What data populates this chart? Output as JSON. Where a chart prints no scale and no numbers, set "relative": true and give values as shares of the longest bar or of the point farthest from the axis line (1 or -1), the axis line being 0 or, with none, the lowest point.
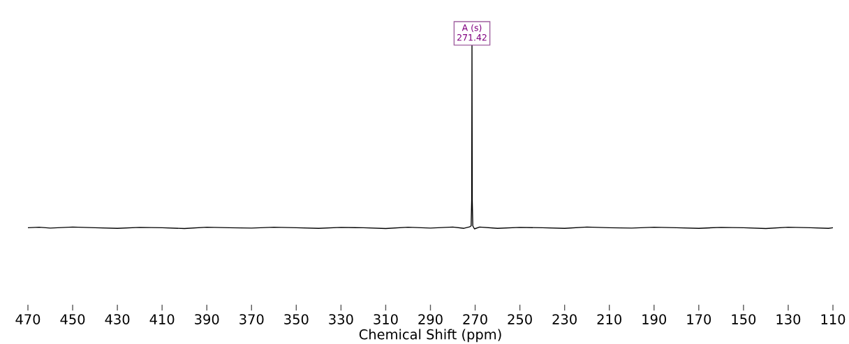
{
  "chart_data": {
    "type": "line",
    "relative": true,
    "xlabel": "Chemical Shift (ppm)",
    "xlim": [
      470,
      110
    ],
    "xticks": [
      470,
      450,
      430,
      410,
      390,
      370,
      350,
      330,
      310,
      290,
      270,
      250,
      230,
      210,
      190,
      170,
      150,
      130,
      110
    ],
    "grid": false,
    "marker": "none",
    "line_style": "solid",
    "series": [
      {
        "color": "#000000",
        "x": [
          470,
          465,
          460,
          450,
          440,
          430,
          420,
          410,
          400,
          390,
          380,
          370,
          360,
          350,
          340,
          330,
          320,
          310,
          300,
          290,
          280,
          275,
          272.5,
          271.8,
          271.55,
          271.42,
          271.3,
          271.05,
          270.3,
          268,
          260,
          250,
          240,
          230,
          220,
          210,
          200,
          190,
          180,
          170,
          160,
          150,
          140,
          130,
          120,
          112,
          110
        ],
        "values": [
          0.006,
          0.009,
          0.004,
          0.01,
          0.006,
          0.003,
          0.008,
          0.006,
          0.002,
          0.009,
          0.006,
          0.004,
          0.009,
          0.006,
          0.003,
          0.008,
          0.006,
          0.002,
          0.009,
          0.004,
          0.01,
          0.003,
          0.011,
          0.016,
          0.156,
          1,
          0.156,
          0.016,
          0.0,
          0.01,
          0.003,
          0.008,
          0.006,
          0.003,
          0.01,
          0.006,
          0.004,
          0.009,
          0.006,
          0.003,
          0.008,
          0.006,
          0.002,
          0.009,
          0.006,
          0.003,
          0.006
        ]
      }
    ],
    "annotations": [
      {
        "text": "A (s)\n271.42",
        "x": 271.42,
        "y": 1
      }
    ]
  }
}
